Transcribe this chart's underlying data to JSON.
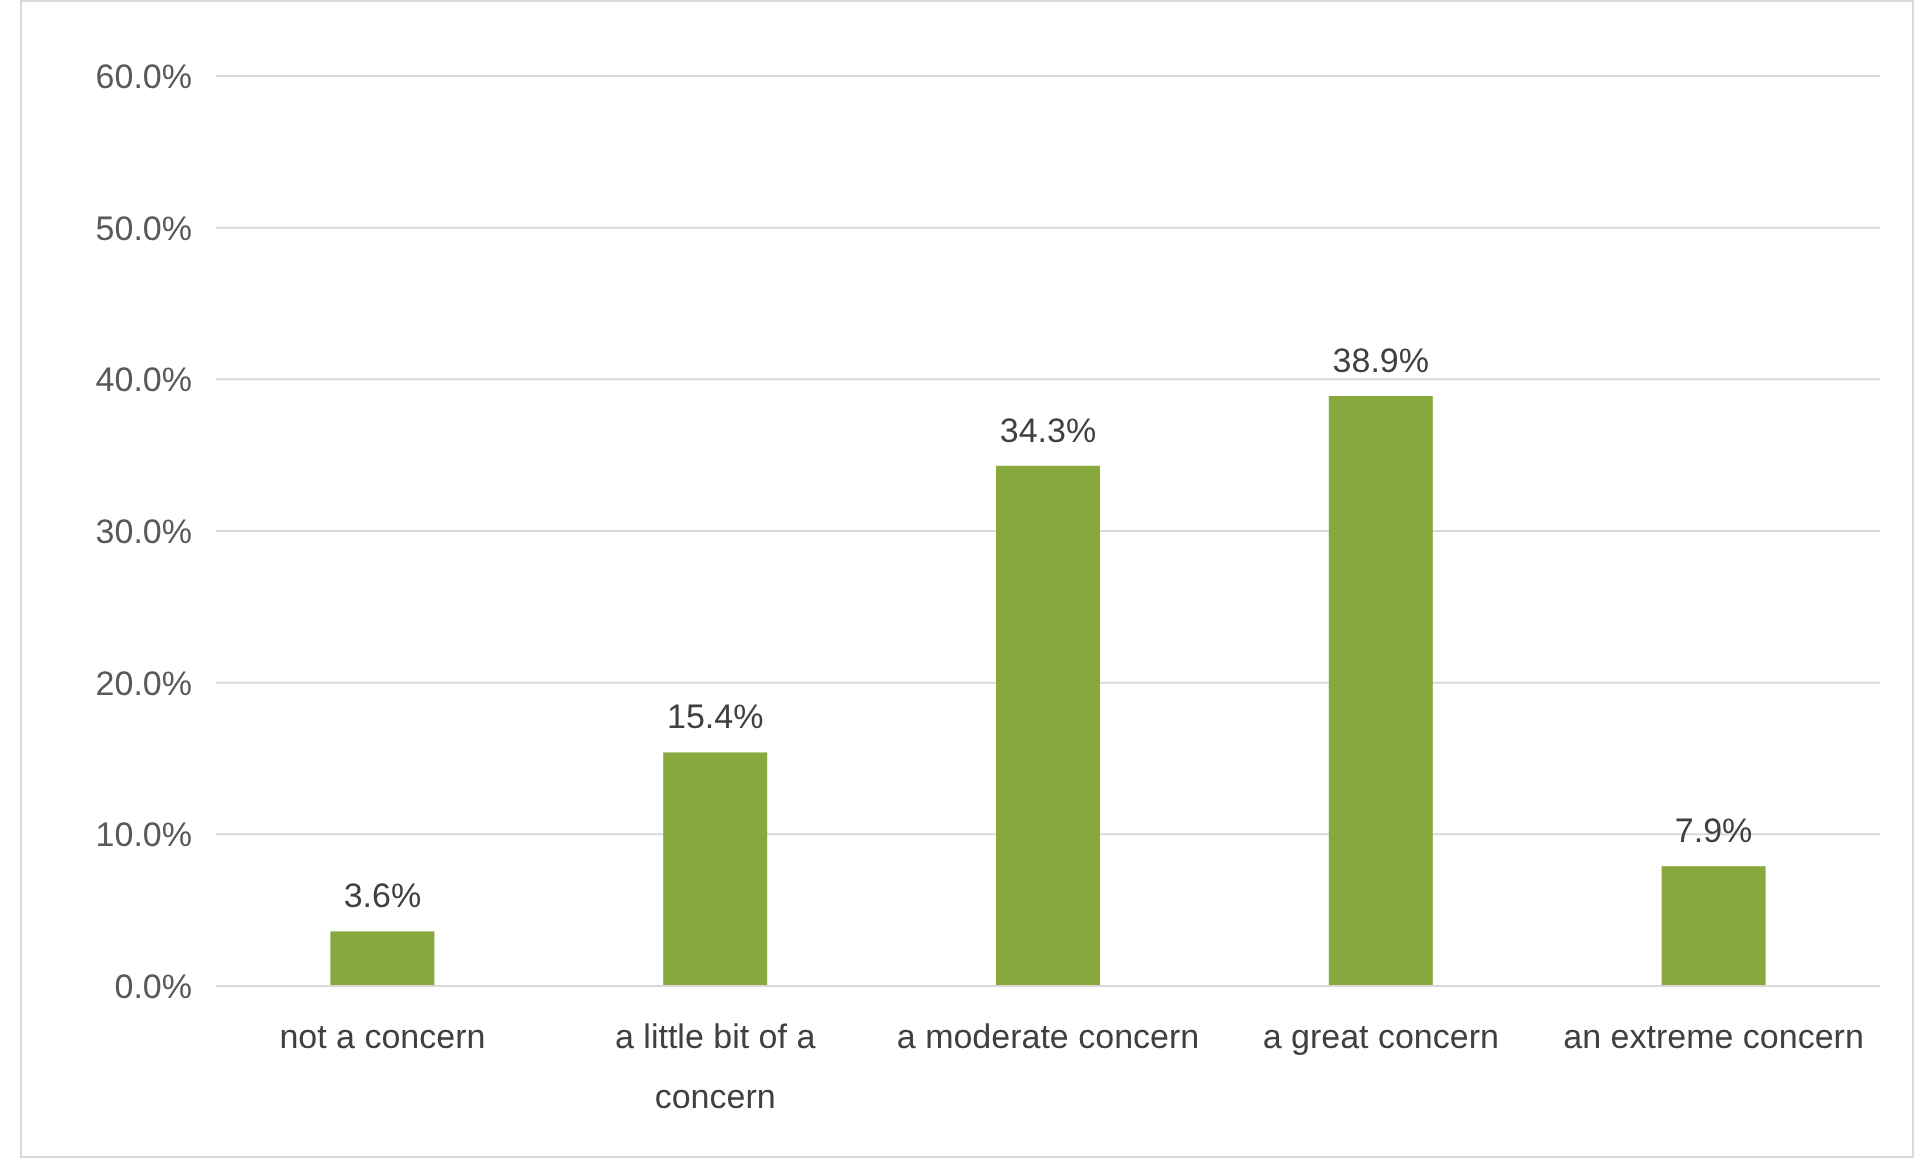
{
  "chart_data": {
    "type": "bar",
    "categories": [
      "not a concern",
      "a little bit of a concern",
      "a moderate concern",
      "a great concern",
      "an extreme concern"
    ],
    "values": [
      3.6,
      15.4,
      34.3,
      38.9,
      7.9
    ],
    "value_labels": [
      "3.6%",
      "15.4%",
      "34.3%",
      "38.9%",
      "7.9%"
    ],
    "color": "#86a83c",
    "ylim": [
      0,
      60
    ],
    "yticks": [
      {
        "value": 0,
        "label": "0.0%"
      },
      {
        "value": 10,
        "label": "10.0%"
      },
      {
        "value": 20,
        "label": "20.0%"
      },
      {
        "value": 30,
        "label": "30.0%"
      },
      {
        "value": 40,
        "label": "40.0%"
      },
      {
        "value": 50,
        "label": "50.0%"
      },
      {
        "value": 60,
        "label": "60.0%"
      }
    ],
    "grid": "y"
  }
}
